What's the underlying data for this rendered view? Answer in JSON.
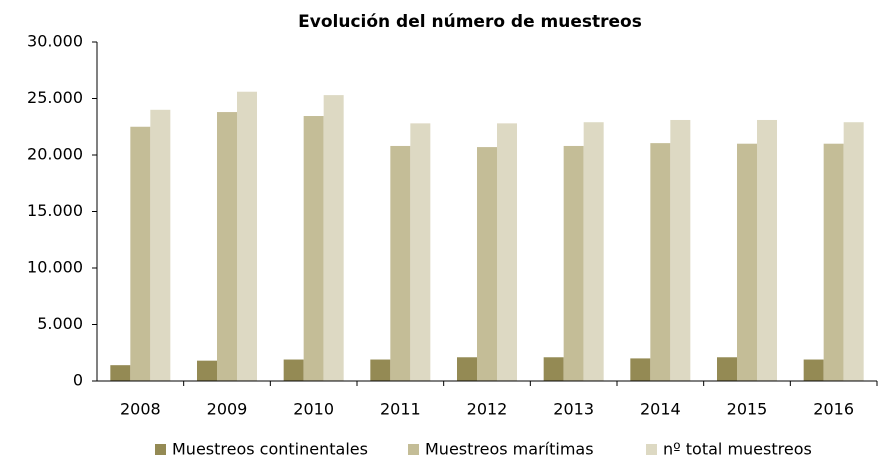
{
  "chart_data": {
    "type": "bar",
    "title": "Evolución del número de muestreos",
    "categories": [
      "2008",
      "2009",
      "2010",
      "2011",
      "2012",
      "2013",
      "2014",
      "2015",
      "2016"
    ],
    "series": [
      {
        "name": "Muestreos continentales",
        "color": "#948a54",
        "values": [
          1400,
          1800,
          1900,
          1900,
          2100,
          2100,
          2000,
          2100,
          1900
        ]
      },
      {
        "name": "Muestreos marítimas",
        "color": "#c4bd97",
        "values": [
          22500,
          23800,
          23450,
          20800,
          20700,
          20800,
          21050,
          21000,
          21000
        ]
      },
      {
        "name": "nº total muestreos",
        "color": "#ddd9c3",
        "values": [
          24000,
          25600,
          25300,
          22800,
          22800,
          22900,
          23100,
          23100,
          22900
        ]
      }
    ],
    "ylim": [
      0,
      30000
    ],
    "yticks": [
      0,
      {
        "value": 5000,
        "label": "5.000"
      },
      {
        "value": 10000,
        "label": "10.000"
      },
      {
        "value": 15000,
        "label": "15.000"
      },
      {
        "value": 20000,
        "label": "20.000"
      },
      {
        "value": 25000,
        "label": "25.000"
      },
      {
        "value": 30000,
        "label": "30.000"
      }
    ],
    "grid": false,
    "legend": "bottom"
  }
}
